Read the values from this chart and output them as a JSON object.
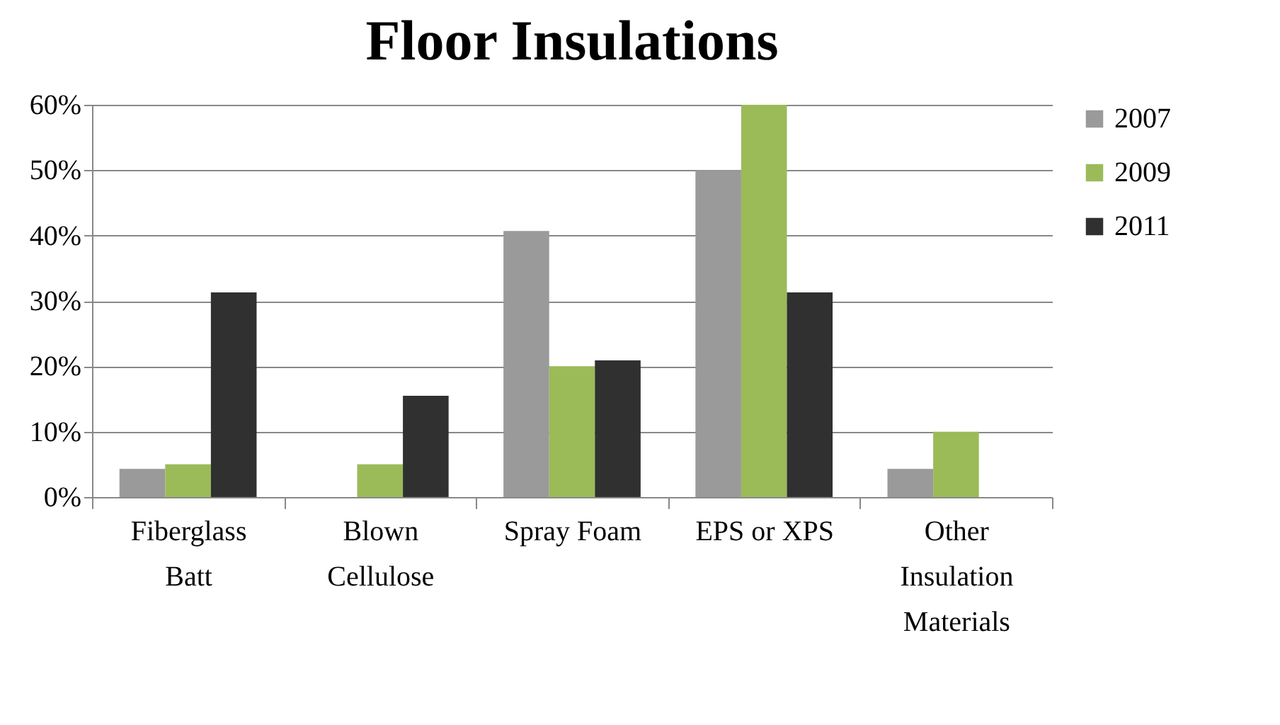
{
  "chart_data": {
    "type": "bar",
    "title": "Floor Insulations",
    "categories": [
      "Fiberglass Batt",
      "Blown Cellulose",
      "Spray Foam",
      "EPS or XPS",
      "Other Insulation Materials"
    ],
    "series": [
      {
        "name": "2007",
        "color": "#9a9a9a",
        "values": [
          4.3,
          null,
          40.7,
          50,
          4.3
        ]
      },
      {
        "name": "2009",
        "color": "#9bbb59",
        "values": [
          5,
          5,
          20,
          60,
          10
        ]
      },
      {
        "name": "2011",
        "color": "#303030",
        "values": [
          31.3,
          15.5,
          20.9,
          31.3,
          null
        ]
      }
    ],
    "ylim": [
      0,
      60
    ],
    "yticks": [
      {
        "value": 0,
        "label": "0%"
      },
      {
        "value": 10,
        "label": "10%"
      },
      {
        "value": 20,
        "label": "20%"
      },
      {
        "value": 30,
        "label": "30%"
      },
      {
        "value": 40,
        "label": "40%"
      },
      {
        "value": 50,
        "label": "50%"
      },
      {
        "value": 60,
        "label": "60%"
      }
    ],
    "grid": "y",
    "legend": "right"
  }
}
